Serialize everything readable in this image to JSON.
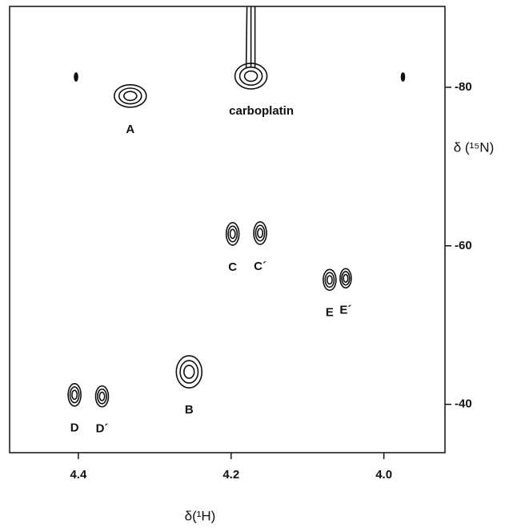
{
  "chart_data": {
    "type": "contour",
    "x_label": "δ(¹H)",
    "y_label": "δ (¹⁵N)",
    "x": [
      4.332,
      4.174,
      4.198,
      4.162,
      4.071,
      4.05,
      4.255,
      4.405,
      4.369,
      4.403,
      3.975
    ],
    "values": [
      -78.9,
      -81.4,
      -61.5,
      -61.6,
      -55.7,
      -55.9,
      -44.1,
      -41.2,
      -41.0,
      -81.3,
      -81.3
    ],
    "labels": [
      "A",
      "carboplatin",
      "C",
      "C´",
      "E",
      "E´",
      "B",
      "D",
      "D´",
      null,
      null
    ],
    "xlim": [
      4.49,
      3.92
    ],
    "ylim": [
      -90.2,
      -33.9
    ],
    "xticks": [
      4.4,
      4.2,
      {
        "value": 4,
        "label": "4.0"
      }
    ],
    "yticks": [
      -80,
      -60,
      -40
    ],
    "color": "#111111"
  }
}
